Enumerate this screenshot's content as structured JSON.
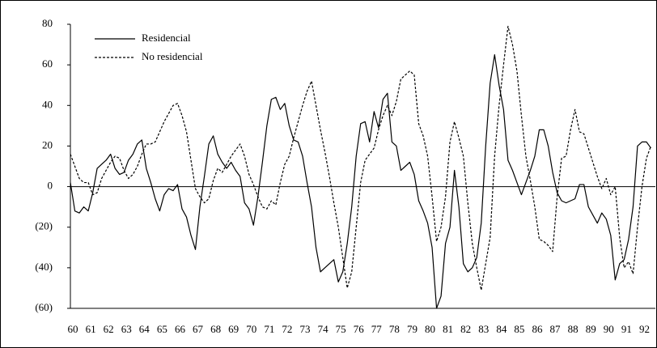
{
  "chart_data": {
    "type": "line",
    "x": [
      60,
      60.25,
      60.5,
      60.75,
      61,
      61.25,
      61.5,
      61.75,
      62,
      62.25,
      62.5,
      62.75,
      63,
      63.25,
      63.5,
      63.75,
      64,
      64.25,
      64.5,
      64.75,
      65,
      65.25,
      65.5,
      65.75,
      66,
      66.25,
      66.5,
      66.75,
      67,
      67.25,
      67.5,
      67.75,
      68,
      68.25,
      68.5,
      68.75,
      69,
      69.25,
      69.5,
      69.75,
      70,
      70.25,
      70.5,
      70.75,
      71,
      71.25,
      71.5,
      71.75,
      72,
      72.25,
      72.5,
      72.75,
      73,
      73.25,
      73.5,
      73.75,
      74,
      74.25,
      74.5,
      74.75,
      75,
      75.25,
      75.5,
      75.75,
      76,
      76.25,
      76.5,
      76.75,
      77,
      77.25,
      77.5,
      77.75,
      78,
      78.25,
      78.5,
      78.75,
      79,
      79.25,
      79.5,
      79.75,
      80,
      80.25,
      80.5,
      80.75,
      81,
      81.25,
      81.5,
      81.75,
      82,
      82.25,
      82.5,
      82.75,
      83,
      83.25,
      83.5,
      83.75,
      84,
      84.25,
      84.5,
      84.75,
      85,
      85.25,
      85.5,
      85.75,
      86,
      86.25,
      86.5,
      86.75,
      87,
      87.25,
      87.5,
      87.75,
      88,
      88.25,
      88.5,
      88.75,
      89,
      89.25,
      89.5,
      89.75,
      90,
      90.25,
      90.5,
      90.75,
      91,
      91.25,
      91.5,
      91.75,
      92,
      92.25,
      92.5
    ],
    "series": [
      {
        "name": "Residencial",
        "color": "#000000",
        "line_style": "solid",
        "values": [
          2,
          -12,
          -13,
          -10,
          -12,
          -3,
          9,
          11,
          13,
          16,
          9,
          6,
          7,
          13,
          16,
          21,
          23,
          9,
          2,
          -6,
          -12,
          -4,
          -1,
          -2,
          1,
          -11,
          -15,
          -24,
          -31,
          -10,
          5,
          21,
          25,
          16,
          12,
          9,
          12,
          8,
          5,
          -8,
          -11,
          -19,
          -5,
          12,
          30,
          43,
          44,
          38,
          41,
          30,
          23,
          22,
          15,
          2,
          -10,
          -30,
          -42,
          -40,
          -38,
          -36,
          -47,
          -42,
          -28,
          -10,
          15,
          31,
          32,
          22,
          37,
          29,
          43,
          46,
          22,
          20,
          8,
          10,
          12,
          6,
          -7,
          -12,
          -18,
          -30,
          -60,
          -54,
          -28,
          -20,
          8,
          -10,
          -38,
          -42,
          -40,
          -35,
          -18,
          20,
          51,
          65,
          50,
          38,
          13,
          8,
          2,
          -4,
          2,
          8,
          15,
          28,
          28,
          20,
          7,
          -3,
          -7,
          -8,
          -7,
          -6,
          1,
          1,
          -10,
          -14,
          -18,
          -13,
          -16,
          -24,
          -46,
          -38,
          -36,
          -26,
          -10,
          20,
          22,
          22,
          19
        ]
      },
      {
        "name": "No residencial",
        "color": "#000000",
        "line_style": "dashed",
        "values": [
          16,
          10,
          4,
          2,
          2,
          -4,
          -3,
          4,
          8,
          12,
          15,
          14,
          8,
          4,
          6,
          10,
          16,
          21,
          21,
          22,
          27,
          32,
          36,
          40,
          41,
          35,
          27,
          13,
          -1,
          -5,
          -8,
          -6,
          3,
          9,
          7,
          11,
          15,
          18,
          21,
          15,
          6,
          1,
          -5,
          -10,
          -11,
          -7,
          -9,
          2,
          11,
          15,
          24,
          32,
          40,
          47,
          52,
          40,
          28,
          17,
          5,
          -8,
          -20,
          -35,
          -50,
          -42,
          -20,
          2,
          13,
          16,
          19,
          28,
          35,
          40,
          35,
          42,
          53,
          55,
          57,
          55,
          31,
          25,
          15,
          -5,
          -27,
          -20,
          -5,
          22,
          32,
          24,
          15,
          -8,
          -28,
          -40,
          -51,
          -38,
          -25,
          15,
          40,
          60,
          79,
          70,
          57,
          35,
          15,
          3,
          -10,
          -26,
          -27,
          -29,
          -32,
          -5,
          14,
          15,
          28,
          38,
          27,
          26,
          19,
          12,
          5,
          -1,
          4,
          -4,
          0,
          -25,
          -40,
          -37,
          -43,
          -20,
          0,
          14,
          20
        ]
      }
    ],
    "xlim": [
      60,
      92.75
    ],
    "xticks": [
      60,
      61,
      62,
      63,
      64,
      65,
      66,
      67,
      68,
      69,
      70,
      71,
      72,
      73,
      74,
      75,
      76,
      77,
      78,
      79,
      80,
      81,
      82,
      83,
      84,
      85,
      86,
      87,
      88,
      89,
      90,
      91,
      92
    ],
    "ylim": [
      -60,
      80
    ],
    "yticks": [
      80,
      60,
      40,
      20,
      0,
      {
        "value": -20,
        "label": "(20)"
      },
      {
        "value": -40,
        "label": "(40)"
      },
      {
        "value": -60,
        "label": "(60)"
      }
    ],
    "grid": false,
    "legend": "upper left"
  }
}
